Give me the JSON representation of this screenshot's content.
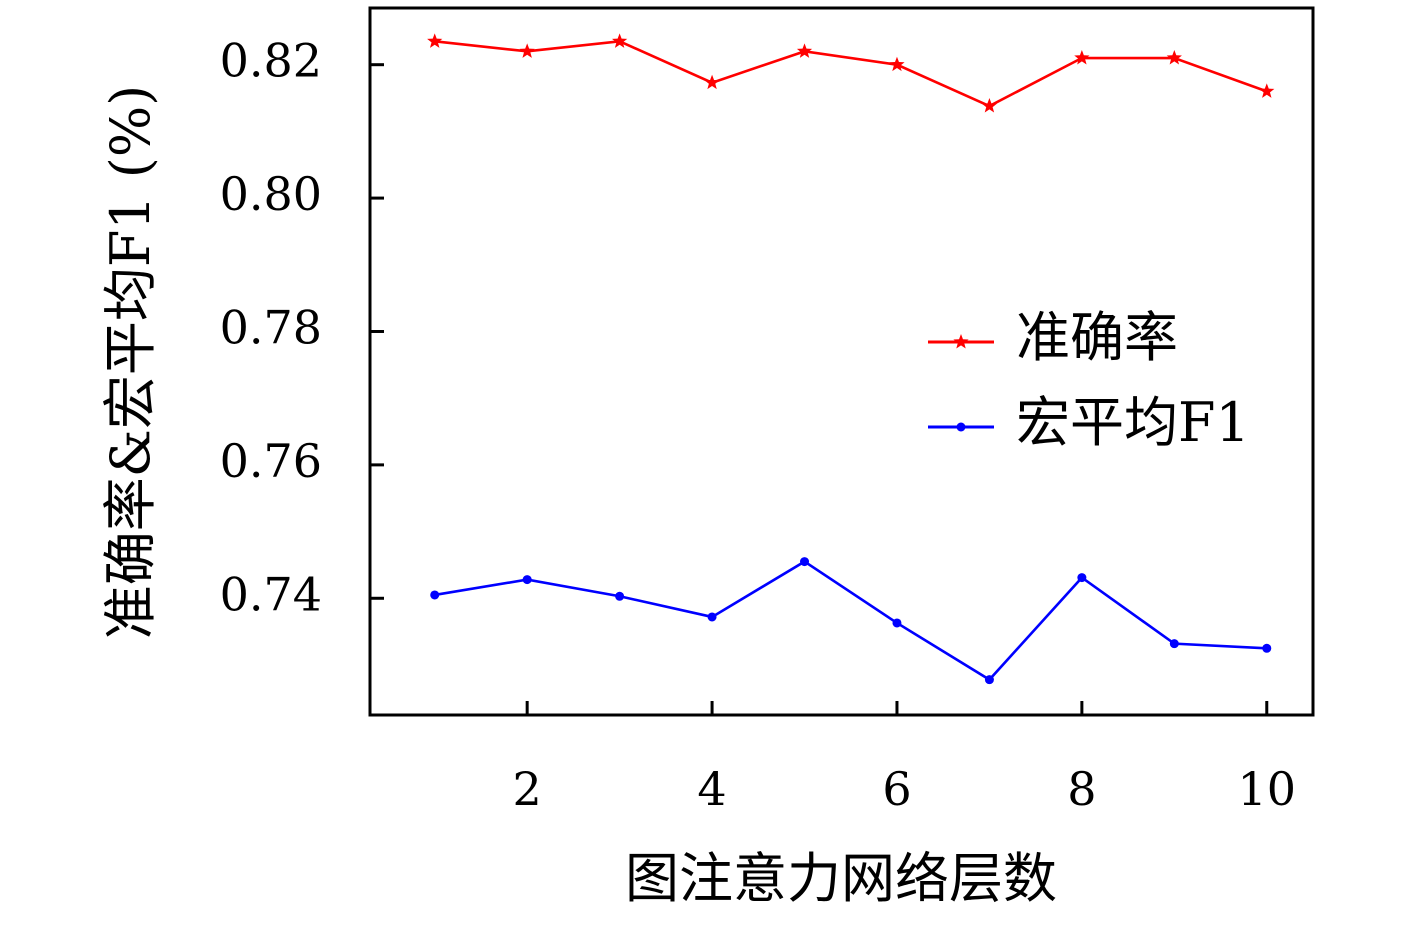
{
  "chart_data": {
    "type": "line",
    "xlabel": "图注意力网络层数",
    "ylabel": "准确率&宏平均F1 (%)",
    "x": [
      1,
      2,
      3,
      4,
      5,
      6,
      7,
      8,
      9,
      10
    ],
    "xlim": [
      0.3,
      10.5
    ],
    "ylim": [
      0.7225,
      0.8285
    ],
    "x_ticks": [
      2,
      4,
      6,
      8,
      10
    ],
    "y_ticks": [
      0.74,
      0.76,
      0.78,
      0.8,
      0.82
    ],
    "x_tick_labels": [
      "2",
      "4",
      "6",
      "8",
      "10"
    ],
    "y_tick_labels": [
      "0.74",
      "0.76",
      "0.78",
      "0.80",
      "0.82"
    ],
    "grid": false,
    "legend_position": "right",
    "series": [
      {
        "name": "准确率",
        "color": "#ff0000",
        "marker": "star",
        "values": [
          0.8235,
          0.822,
          0.8235,
          0.8173,
          0.822,
          0.82,
          0.8138,
          0.821,
          0.821,
          0.816
        ]
      },
      {
        "name": "宏平均F1",
        "color": "#0000ff",
        "marker": "circle",
        "values": [
          0.7405,
          0.7428,
          0.7403,
          0.7372,
          0.7455,
          0.7363,
          0.7278,
          0.7431,
          0.7332,
          0.7325
        ]
      }
    ]
  }
}
